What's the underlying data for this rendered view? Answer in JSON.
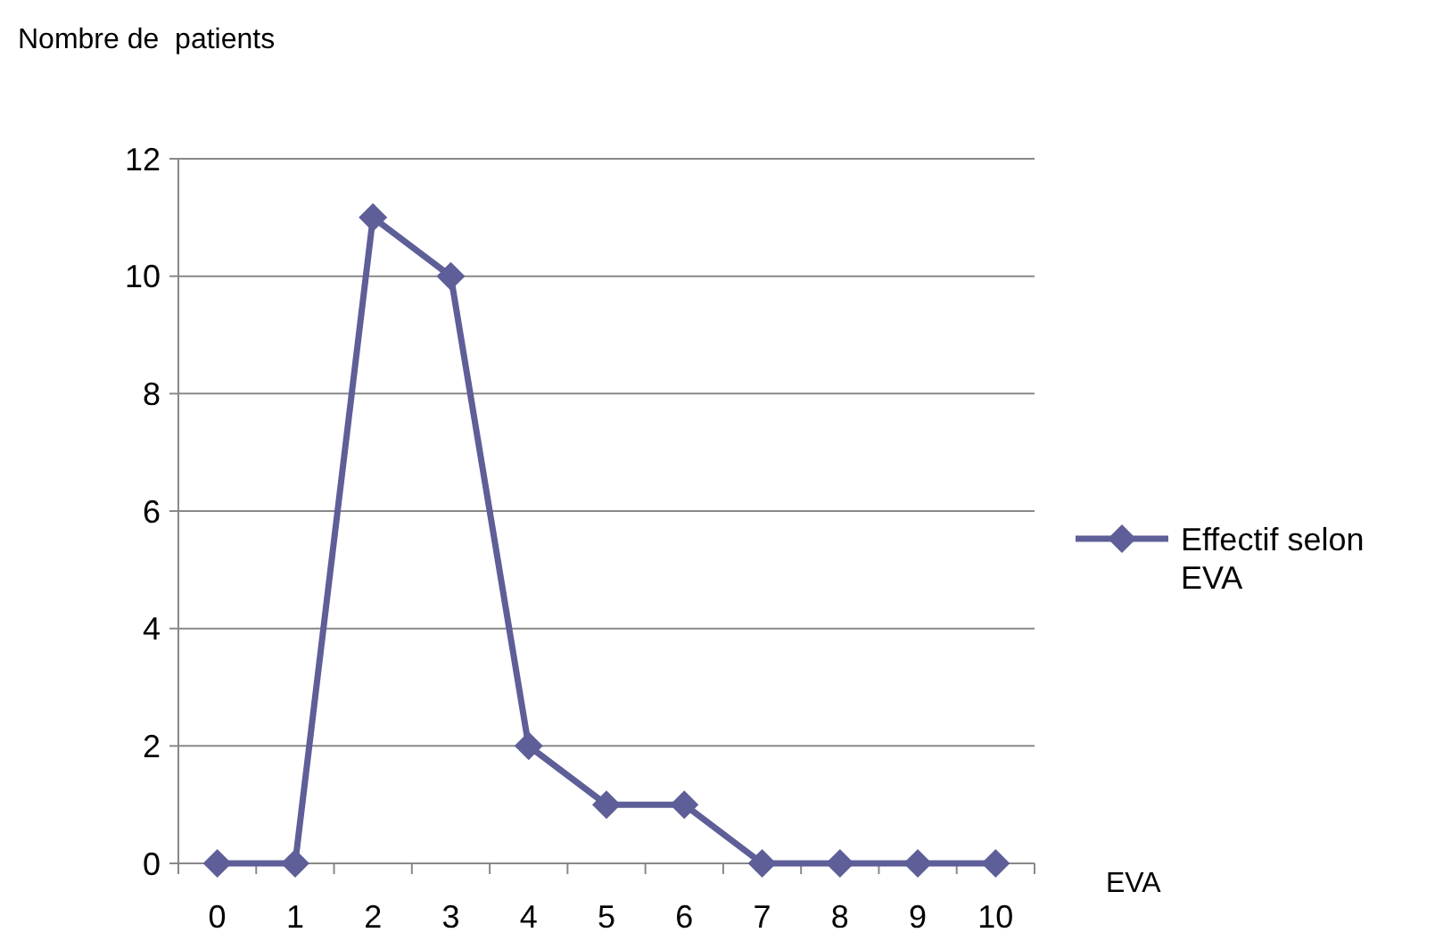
{
  "chart_data": {
    "type": "line",
    "xlabel": "EVA",
    "ylabel": "Nombre de  patients",
    "categories": [
      "0",
      "1",
      "2",
      "3",
      "4",
      "5",
      "6",
      "7",
      "8",
      "9",
      "10"
    ],
    "series": [
      {
        "name": "Effectif selon EVA",
        "color": "#5e5e98",
        "values": [
          0,
          0,
          11,
          10,
          2,
          1,
          1,
          0,
          0,
          0,
          0
        ]
      }
    ],
    "ylim": [
      0,
      12
    ],
    "yticks": [
      0,
      2,
      4,
      6,
      8,
      10,
      12
    ],
    "grid": "y",
    "legend": "right",
    "marker": "diamond",
    "line_style": "solid"
  }
}
